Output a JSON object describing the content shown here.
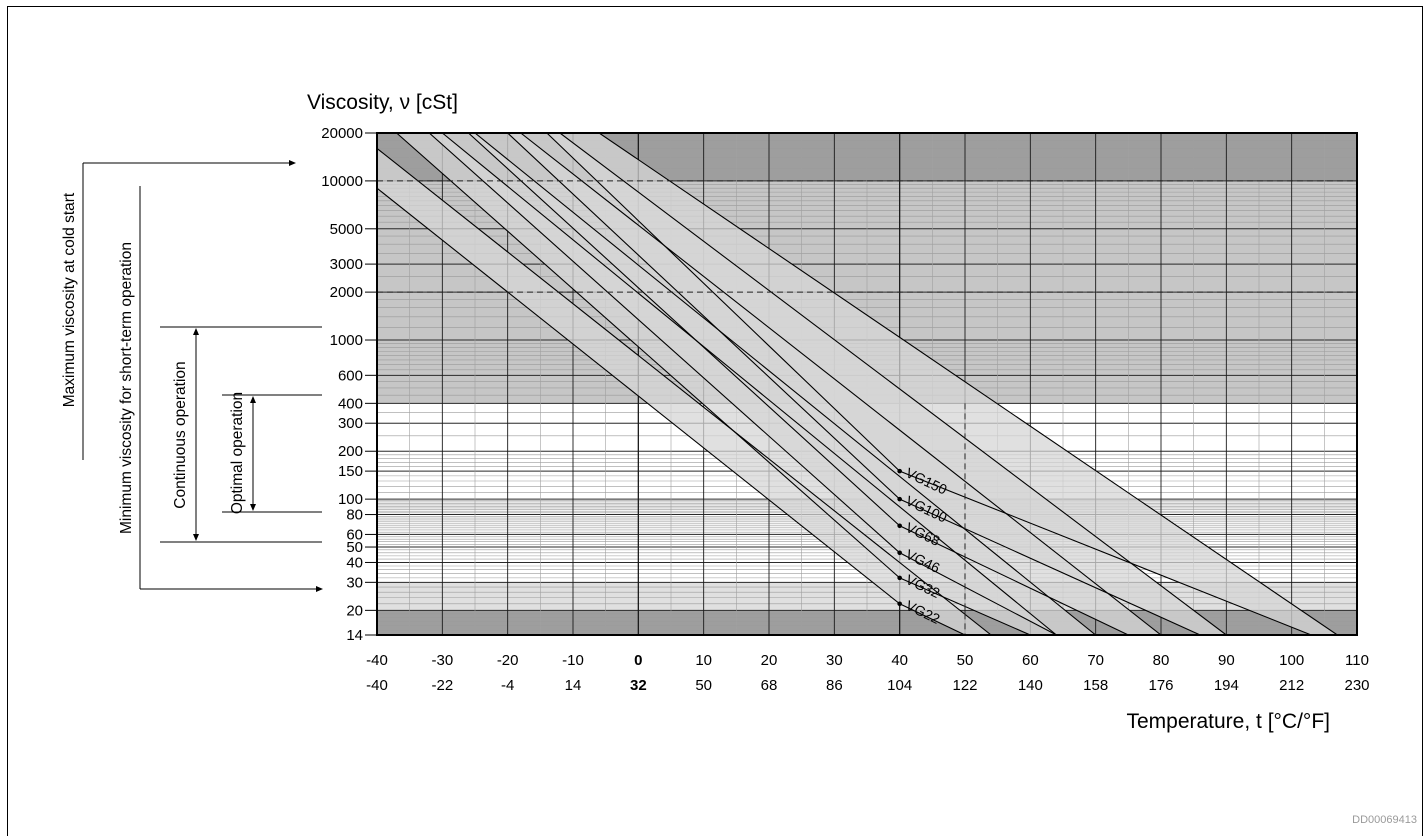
{
  "chart_data": {
    "type": "line",
    "title": "Viscosity, ν [cSt]",
    "ylabel": "Viscosity, ν [cSt]",
    "xlabel": "Temperature, t [°C/°F]",
    "yscale": "log",
    "ylim": [
      14,
      20000
    ],
    "xlim": [
      -40,
      110
    ],
    "x_ticks_c": [
      "-40",
      "-30",
      "-20",
      "-10",
      "0",
      "10",
      "20",
      "30",
      "40",
      "50",
      "60",
      "70",
      "80",
      "90",
      "100",
      "110"
    ],
    "x_ticks_f": [
      "-40",
      "-22",
      "-4",
      "14",
      "32",
      "50",
      "68",
      "86",
      "104",
      "122",
      "140",
      "158",
      "176",
      "194",
      "212",
      "230"
    ],
    "y_ticks": [
      "14",
      "20",
      "30",
      "40",
      "50",
      "60",
      "80",
      "100",
      "150",
      "200",
      "300",
      "400",
      "600",
      "1000",
      "2000",
      "3000",
      "5000",
      "10000",
      "20000"
    ],
    "series": [
      {
        "name": "VG22",
        "x": [
          -40,
          40,
          50
        ],
        "y": [
          9000,
          22,
          14
        ]
      },
      {
        "name": "VG32",
        "x": [
          -37,
          40,
          60
        ],
        "y": [
          20000,
          32,
          14
        ]
      },
      {
        "name": "VG46",
        "x": [
          -32,
          40,
          64
        ],
        "y": [
          20000,
          46,
          14
        ]
      },
      {
        "name": "VG68",
        "x": [
          -26,
          40,
          75
        ],
        "y": [
          20000,
          68,
          14
        ]
      },
      {
        "name": "VG100",
        "x": [
          -20,
          40,
          86
        ],
        "y": [
          20000,
          100,
          14
        ]
      },
      {
        "name": "VG150",
        "x": [
          -14,
          40,
          103
        ],
        "y": [
          20000,
          150,
          14
        ]
      }
    ],
    "band_partner_lines": [
      {
        "x": [
          -40,
          54
        ],
        "y": [
          16000,
          14
        ]
      },
      {
        "x": [
          -30,
          64
        ],
        "y": [
          20000,
          14
        ]
      },
      {
        "x": [
          -25,
          70
        ],
        "y": [
          20000,
          14
        ]
      },
      {
        "x": [
          -18,
          80
        ],
        "y": [
          20000,
          14
        ]
      },
      {
        "x": [
          -12,
          90
        ],
        "y": [
          20000,
          14
        ]
      },
      {
        "x": [
          -6,
          107
        ],
        "y": [
          20000,
          14
        ]
      }
    ],
    "regions": [
      {
        "from": 14,
        "to": 20,
        "shade": "dark"
      },
      {
        "from": 20,
        "to": 30,
        "shade": "light"
      },
      {
        "from": 30,
        "to": 400,
        "shade": "none"
      },
      {
        "from": 400,
        "to": 10000,
        "shade": "medium"
      },
      {
        "from": 10000,
        "to": 20000,
        "shade": "dark"
      }
    ],
    "reference_lines": {
      "y_dashed": [
        10000,
        2000
      ],
      "x_dashed": [
        50
      ]
    },
    "colors": {
      "dark": "#9e9e9e",
      "medium": "#c6c6c6",
      "light": "#e0e0e0",
      "band": "#d6d6d6"
    },
    "annotations": {
      "max_cold_start": "Maximum viscosity at cold start",
      "min_short_term": "Minimum viscosity for short-term operation",
      "continuous": "Continuous operation",
      "optimal": "Optimal operation"
    }
  },
  "doc_id": "DD00069413"
}
